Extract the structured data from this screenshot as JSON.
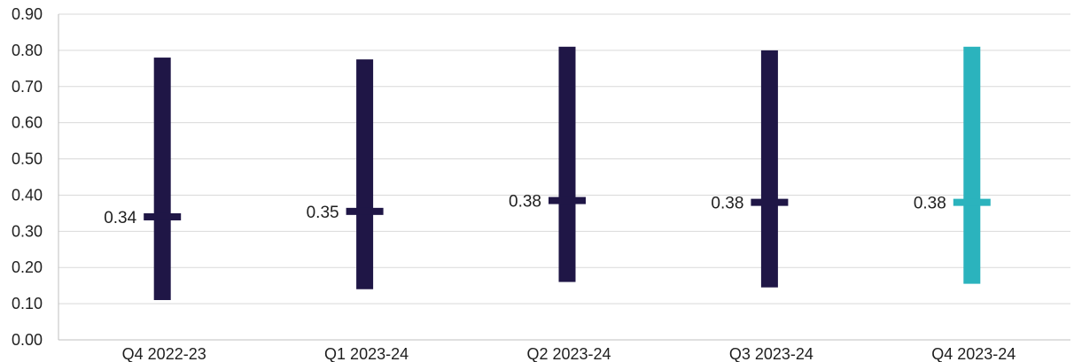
{
  "chart_data": {
    "type": "range",
    "title": "",
    "xlabel": "",
    "ylabel": "",
    "ylim": [
      0,
      0.9
    ],
    "y_ticks": [
      "0.00",
      "0.10",
      "0.20",
      "0.30",
      "0.40",
      "0.50",
      "0.60",
      "0.70",
      "0.80",
      "0.90"
    ],
    "y_tick_values": [
      0,
      0.1,
      0.2,
      0.3,
      0.4,
      0.5,
      0.6,
      0.7,
      0.8,
      0.9
    ],
    "grid": true,
    "legend": "none",
    "categories": [
      "Q4 2022-23",
      "Q1 2023-24",
      "Q2 2023-24",
      "Q3 2023-24",
      "Q4 2023-24"
    ],
    "series": [
      {
        "low": [
          0.11,
          0.14,
          0.16,
          0.145,
          0.155
        ],
        "high": [
          0.78,
          0.775,
          0.81,
          0.8,
          0.81
        ],
        "mid": [
          0.34,
          0.355,
          0.385,
          0.38,
          0.38
        ],
        "mid_labels": [
          "0.34",
          "0.35",
          "0.38",
          "0.38",
          "0.38"
        ],
        "colors": [
          "#1f1646",
          "#1f1646",
          "#1f1646",
          "#1f1646",
          "#2bb3bd"
        ]
      }
    ]
  }
}
